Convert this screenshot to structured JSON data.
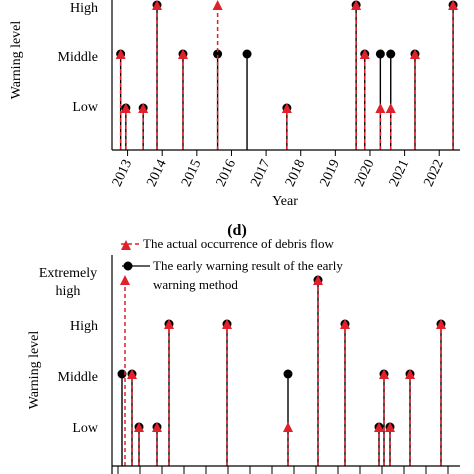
{
  "chart_data": [
    {
      "type": "stem",
      "panel": "top",
      "xlabel": "Year",
      "ylabel": "Warning level",
      "x_ticks": [
        "2013",
        "2014",
        "2015",
        "2016",
        "2017",
        "2018",
        "2019",
        "2020",
        "2021",
        "2022"
      ],
      "x_range": [
        2012.55,
        2022.6
      ],
      "y_levels": [
        "Low",
        "Middle",
        "High"
      ],
      "colors": {
        "actual": "#e0202a",
        "warning": "#000000"
      },
      "actual": [
        {
          "x": 2012.8,
          "level": "Middle"
        },
        {
          "x": 2012.95,
          "level": "Low"
        },
        {
          "x": 2013.45,
          "level": "Low"
        },
        {
          "x": 2013.85,
          "level": "High"
        },
        {
          "x": 2014.6,
          "level": "Middle"
        },
        {
          "x": 2015.6,
          "level": "High"
        },
        {
          "x": 2017.6,
          "level": "Low"
        },
        {
          "x": 2019.6,
          "level": "High"
        },
        {
          "x": 2019.85,
          "level": "Middle"
        },
        {
          "x": 2020.3,
          "level": "Low"
        },
        {
          "x": 2020.6,
          "level": "Low"
        },
        {
          "x": 2021.3,
          "level": "Middle"
        },
        {
          "x": 2022.4,
          "level": "High"
        }
      ],
      "warning": [
        {
          "x": 2012.8,
          "level": "Middle"
        },
        {
          "x": 2012.95,
          "level": "Low"
        },
        {
          "x": 2013.45,
          "level": "Low"
        },
        {
          "x": 2013.85,
          "level": "High"
        },
        {
          "x": 2014.6,
          "level": "Middle"
        },
        {
          "x": 2015.6,
          "level": "Middle"
        },
        {
          "x": 2016.45,
          "level": "Middle"
        },
        {
          "x": 2017.6,
          "level": "Low"
        },
        {
          "x": 2019.6,
          "level": "High"
        },
        {
          "x": 2019.85,
          "level": "Middle"
        },
        {
          "x": 2020.3,
          "level": "Middle"
        },
        {
          "x": 2020.6,
          "level": "Middle"
        },
        {
          "x": 2021.3,
          "level": "Middle"
        },
        {
          "x": 2022.4,
          "level": "High"
        }
      ]
    },
    {
      "type": "stem",
      "panel": "bottom",
      "panel_label": "(d)",
      "ylabel": "Warning level",
      "y_levels": [
        "Low",
        "Middle",
        "High",
        "Extremely high"
      ],
      "colors": {
        "actual": "#e0202a",
        "warning": "#000000"
      },
      "legend": [
        {
          "text": "The actual occurrence of debris flow",
          "style": "actual"
        },
        {
          "text": "The early warning result of the early warning method",
          "style": "warning"
        }
      ],
      "actual": [
        {
          "x": 1,
          "level": "Extremely high"
        },
        {
          "x": 2,
          "level": "Middle"
        },
        {
          "x": 3,
          "level": "Low"
        },
        {
          "x": 4,
          "level": "Low"
        },
        {
          "x": 5,
          "level": "High"
        },
        {
          "x": 6,
          "level": "High"
        },
        {
          "x": 7,
          "level": "Low"
        },
        {
          "x": 8,
          "level": "Extremely high"
        },
        {
          "x": 9,
          "level": "High"
        },
        {
          "x": 10,
          "level": "Middle"
        },
        {
          "x": 11,
          "level": "Low"
        },
        {
          "x": 12,
          "level": "Low"
        },
        {
          "x": 13,
          "level": "Middle"
        },
        {
          "x": 14,
          "level": "High"
        }
      ],
      "warning": [
        {
          "x": 0.8,
          "level": "Middle"
        },
        {
          "x": 2,
          "level": "Middle"
        },
        {
          "x": 3,
          "level": "Low"
        },
        {
          "x": 4,
          "level": "Low"
        },
        {
          "x": 5,
          "level": "High"
        },
        {
          "x": 6,
          "level": "High"
        },
        {
          "x": 7,
          "level": "Middle"
        },
        {
          "x": 8,
          "level": "Extremely high"
        },
        {
          "x": 9,
          "level": "High"
        },
        {
          "x": 10,
          "level": "Middle"
        },
        {
          "x": 11,
          "level": "Low"
        },
        {
          "x": 12,
          "level": "Low"
        },
        {
          "x": 13,
          "level": "Middle"
        },
        {
          "x": 14,
          "level": "High"
        }
      ]
    }
  ]
}
